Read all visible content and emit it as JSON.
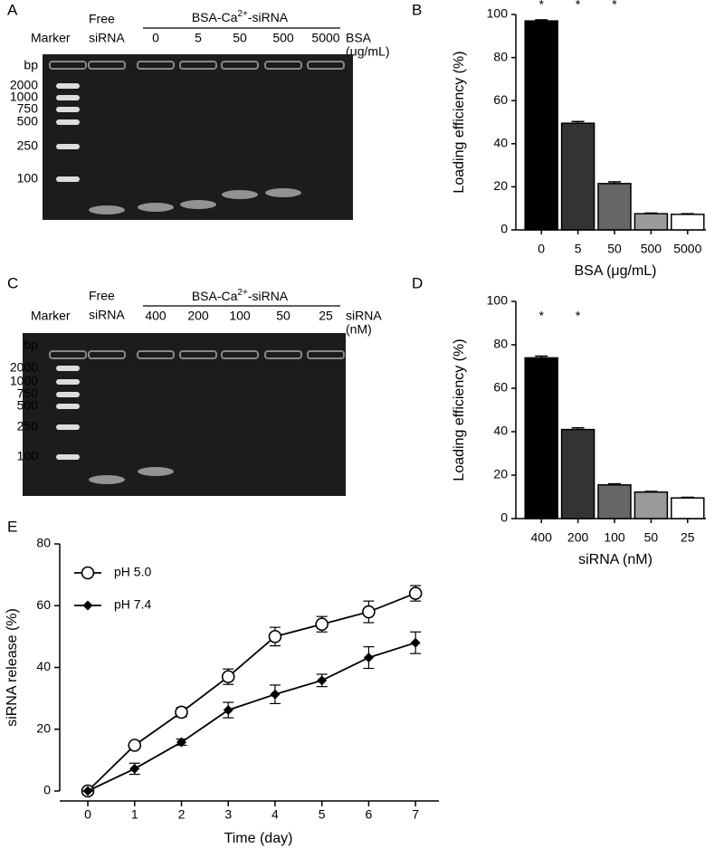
{
  "gels": [
    {
      "panel": "A",
      "marker_header": "Marker",
      "free_header": [
        "Free",
        "siRNA"
      ],
      "group_label": [
        "BSA-Ca",
        "2+",
        "-siRNA"
      ],
      "lanes": [
        "0",
        "5",
        "50",
        "500",
        "5000"
      ],
      "lane_unit": [
        "BSA",
        "(μg/mL)"
      ],
      "ladder": [
        "bp",
        "2000",
        "1000",
        "750",
        "500",
        "250",
        "100"
      ]
    },
    {
      "panel": "C",
      "marker_header": "Marker",
      "free_header": [
        "Free",
        "siRNA"
      ],
      "group_label": [
        "BSA-Ca",
        "2+",
        "-siRNA"
      ],
      "lanes": [
        "400",
        "200",
        "100",
        "50",
        "25"
      ],
      "lane_unit": [
        "siRNA",
        "(nM)"
      ],
      "ladder": [
        "bp",
        "2000",
        "1000",
        "750",
        "500",
        "250",
        "100"
      ]
    }
  ],
  "chart_data": [
    {
      "type": "bar",
      "panel": "B",
      "categories": [
        "0",
        "5",
        "50",
        "500",
        "5000"
      ],
      "values": [
        97,
        49.5,
        21.5,
        7.5,
        7.2
      ],
      "errors": [
        0.5,
        0.8,
        0.8,
        0.3,
        0.3
      ],
      "bar_colors": [
        "#000000",
        "#333333",
        "#666666",
        "#9a9a9a",
        "#ffffff"
      ],
      "significance": [
        "*",
        "*",
        "*",
        null,
        null
      ],
      "ylim": [
        0,
        100
      ],
      "yticks": [
        0,
        20,
        40,
        60,
        80,
        100
      ],
      "ylabel": "Loading efficiency (%)",
      "xlabel": "BSA (μg/mL)"
    },
    {
      "type": "bar",
      "panel": "D",
      "categories": [
        "400",
        "200",
        "100",
        "50",
        "25"
      ],
      "values": [
        74,
        41,
        15.5,
        12.2,
        9.5
      ],
      "errors": [
        0.8,
        0.8,
        0.5,
        0.3,
        0.3
      ],
      "bar_colors": [
        "#000000",
        "#333333",
        "#666666",
        "#9a9a9a",
        "#ffffff"
      ],
      "significance": [
        "*",
        "*",
        null,
        null,
        null
      ],
      "ylim": [
        0,
        100
      ],
      "yticks": [
        0,
        20,
        40,
        60,
        80,
        100
      ],
      "ylabel": "Loading efficiency (%)",
      "xlabel": "siRNA (nM)"
    },
    {
      "type": "line",
      "panel": "E",
      "x": [
        0,
        1,
        2,
        3,
        4,
        5,
        6,
        7
      ],
      "xlim": [
        -0.6,
        7.5
      ],
      "xticks": [
        0,
        1,
        2,
        3,
        4,
        5,
        6,
        7
      ],
      "ylim": [
        0,
        80
      ],
      "yticks": [
        0,
        20,
        40,
        60,
        80
      ],
      "xlabel": "Time (day)",
      "ylabel": "siRNA release (%)",
      "legend": "upper left",
      "series": [
        {
          "name": "pH 5.0",
          "color": "#000000",
          "marker": "open-circle",
          "values": [
            0,
            14.8,
            25.5,
            37,
            50,
            54,
            58,
            64
          ],
          "errors": [
            0,
            0.8,
            1.5,
            2.5,
            3,
            2.5,
            3.5,
            2.5
          ]
        },
        {
          "name": "pH 7.4",
          "color": "#000000",
          "marker": "diamond",
          "values": [
            0,
            7.2,
            15.8,
            26.2,
            31.3,
            35.8,
            43.2,
            48
          ],
          "errors": [
            0,
            1.8,
            1,
            2.5,
            3,
            2,
            3.5,
            3.5
          ]
        }
      ]
    }
  ]
}
